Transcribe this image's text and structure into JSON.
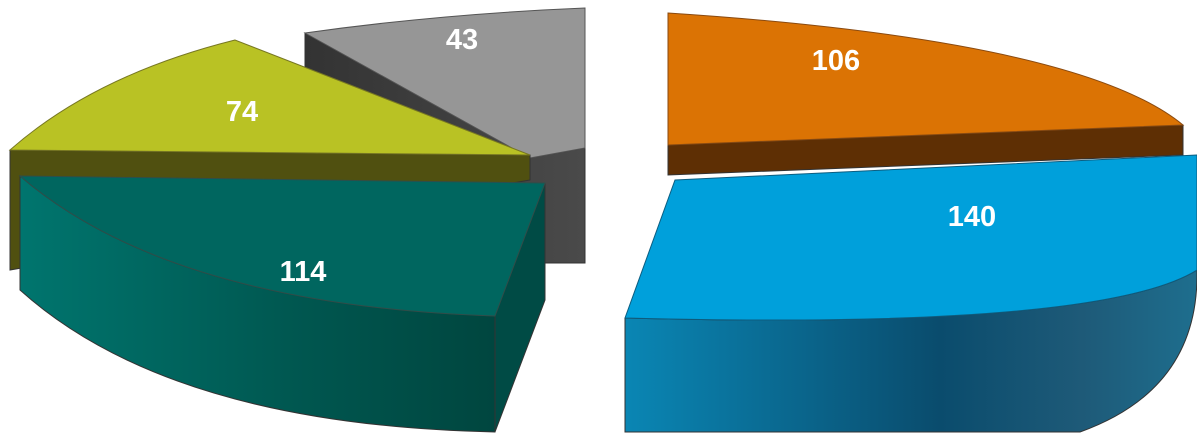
{
  "chart_data": {
    "type": "pie",
    "style": "3d-exploded",
    "slices": [
      {
        "value": 114,
        "label": "114",
        "top_color": "#00665f",
        "side_color": "#005b55",
        "edge_color": "#333333"
      },
      {
        "value": 74,
        "label": "74",
        "top_color": "#b9c224",
        "side_color": "#505010",
        "edge_color": "#333333"
      },
      {
        "value": 43,
        "label": "43",
        "top_color": "#969696",
        "side_color": "#464646",
        "edge_color": "#333333"
      },
      {
        "value": 106,
        "label": "106",
        "top_color": "#db7304",
        "side_color": "#5e2f04",
        "edge_color": "#333333"
      },
      {
        "value": 140,
        "label": "140",
        "top_color": "#00a0db",
        "side_color": "#0a6a90",
        "edge_color": "#333333"
      }
    ],
    "legend": "none",
    "title": ""
  }
}
